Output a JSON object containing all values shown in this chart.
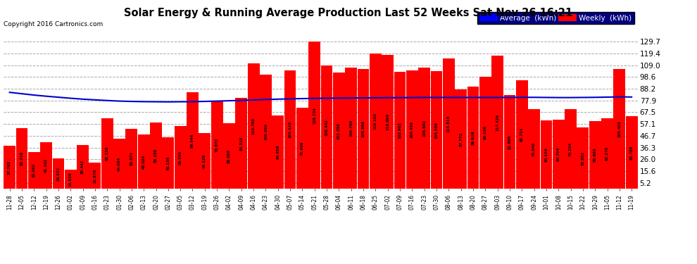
{
  "title": "Solar Energy & Running Average Production Last 52 Weeks Sat Nov 26 16:21",
  "copyright": "Copyright 2016 Cartronics.com",
  "bar_color": "#ff0000",
  "avg_line_color": "#0000cc",
  "background_color": "#ffffff",
  "plot_bg_color": "#ffffff",
  "grid_color": "#aaaaaa",
  "yticks": [
    5.2,
    15.6,
    26.0,
    36.3,
    46.7,
    57.1,
    67.5,
    77.9,
    88.2,
    98.6,
    109.0,
    119.4,
    129.7
  ],
  "weekly_values": [
    37.792,
    53.21,
    32.062,
    41.102,
    26.932,
    16.534,
    38.442,
    22.878,
    62.12,
    44.064,
    53.072,
    48.024,
    58.15,
    45.136,
    55.536,
    84.944,
    49.128,
    76.872,
    58.008,
    80.31,
    110.79,
    100.906,
    64.858,
    104.118,
    71.606,
    129.734,
    108.442,
    102.358,
    106.766,
    105.668,
    119.102,
    118.098,
    102.902,
    104.456,
    106.592,
    103.506,
    114.816,
    87.772,
    89.926,
    99.036,
    117.426,
    82.606,
    95.714,
    70.04,
    60.164,
    60.794,
    70.224,
    53.952,
    59.68,
    62.27,
    105.402,
    63.788
  ],
  "x_labels": [
    "11-28",
    "12-05",
    "12-12",
    "12-19",
    "12-26",
    "01-02",
    "01-09",
    "01-16",
    "01-23",
    "01-30",
    "02-06",
    "02-13",
    "02-20",
    "02-27",
    "03-05",
    "03-12",
    "03-19",
    "03-26",
    "04-02",
    "04-09",
    "04-16",
    "04-23",
    "04-30",
    "05-07",
    "05-14",
    "05-21",
    "05-28",
    "06-04",
    "06-11",
    "06-18",
    "06-25",
    "07-02",
    "07-09",
    "07-16",
    "07-23",
    "07-30",
    "08-06",
    "08-13",
    "08-20",
    "08-27",
    "09-03",
    "09-10",
    "09-17",
    "09-24",
    "10-01",
    "10-08",
    "10-15",
    "10-22",
    "10-29",
    "11-05",
    "11-12",
    "11-19"
  ],
  "avg_values": [
    85.0,
    83.8,
    82.6,
    81.6,
    80.7,
    79.8,
    79.0,
    78.4,
    77.8,
    77.3,
    77.0,
    76.8,
    76.7,
    76.6,
    76.7,
    76.8,
    77.0,
    77.3,
    77.6,
    77.9,
    78.3,
    78.7,
    79.0,
    79.3,
    79.5,
    79.7,
    79.8,
    79.9,
    80.0,
    80.1,
    80.2,
    80.3,
    80.3,
    80.4,
    80.5,
    80.5,
    80.5,
    80.5,
    80.5,
    80.5,
    80.5,
    80.5,
    80.6,
    80.6,
    80.5,
    80.4,
    80.4,
    80.5,
    80.6,
    80.8,
    81.0,
    80.9
  ],
  "legend_bg_color": "#000080",
  "legend_avg_color": "#0000ff",
  "legend_weekly_color": "#ff0000",
  "ylim_max": 135.0,
  "ylim_min": 0.0
}
